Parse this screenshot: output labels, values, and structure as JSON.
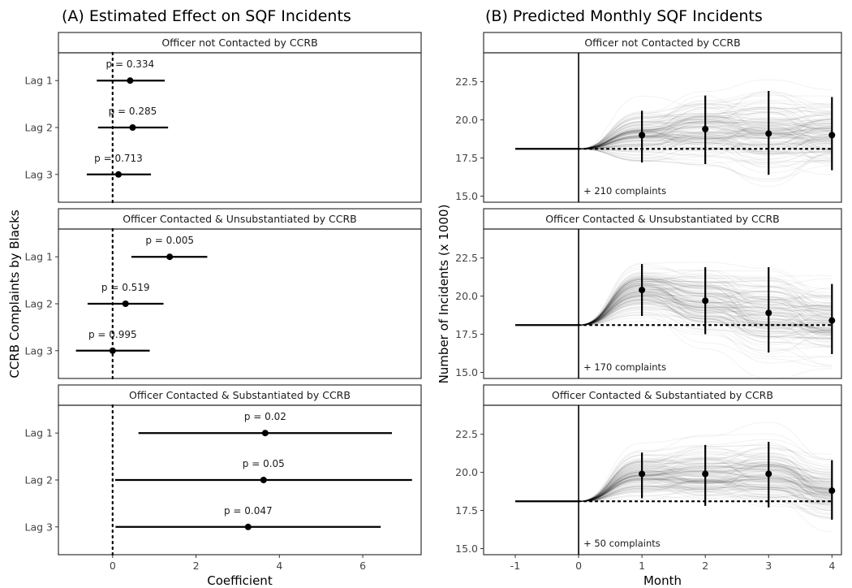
{
  "chart_data": [
    {
      "type": "scatter",
      "panel_title": "(A) Estimated Effect on SQF Incidents",
      "xlabel": "Coefficient",
      "ylabel": "CCRB Complaints by Blacks",
      "xlim": [
        -1.3,
        7.4
      ],
      "xticks": [
        0,
        2,
        4,
        6
      ],
      "reference_line_x": 0,
      "facets": [
        {
          "title": "Officer not Contacted by CCRB",
          "rows": [
            {
              "label": "Lag 1",
              "estimate": 0.42,
              "lower": -0.38,
              "upper": 1.25,
              "p_label": "p = 0.334"
            },
            {
              "label": "Lag 2",
              "estimate": 0.48,
              "lower": -0.35,
              "upper": 1.33,
              "p_label": "p = 0.285"
            },
            {
              "label": "Lag 3",
              "estimate": 0.14,
              "lower": -0.62,
              "upper": 0.92,
              "p_label": "p = 0.713"
            }
          ]
        },
        {
          "title": "Officer Contacted & Unsubstantiated by CCRB",
          "rows": [
            {
              "label": "Lag 1",
              "estimate": 1.37,
              "lower": 0.45,
              "upper": 2.27,
              "p_label": "p = 0.005"
            },
            {
              "label": "Lag 2",
              "estimate": 0.31,
              "lower": -0.6,
              "upper": 1.22,
              "p_label": "p = 0.519"
            },
            {
              "label": "Lag 3",
              "estimate": 0.0,
              "lower": -0.88,
              "upper": 0.89,
              "p_label": "p = 0.995"
            }
          ]
        },
        {
          "title": "Officer Contacted & Substantiated by CCRB",
          "rows": [
            {
              "label": "Lag 1",
              "estimate": 3.66,
              "lower": 0.62,
              "upper": 6.7,
              "p_label": "p = 0.02"
            },
            {
              "label": "Lag 2",
              "estimate": 3.62,
              "lower": 0.06,
              "upper": 7.18,
              "p_label": "p = 0.05"
            },
            {
              "label": "Lag 3",
              "estimate": 3.25,
              "lower": 0.07,
              "upper": 6.43,
              "p_label": "p = 0.047"
            }
          ]
        }
      ]
    },
    {
      "type": "line",
      "panel_title": "(B) Predicted Monthly SQF Incidents",
      "xlabel": "Month",
      "ylabel": "Number of Incidents (x 1000)",
      "xlim": [
        -1.5,
        4.15
      ],
      "ylim": [
        14.6,
        24.4
      ],
      "xticks": [
        -1,
        0,
        1,
        2,
        3,
        4
      ],
      "yticks": [
        "15.0",
        "17.5",
        "20.0",
        "22.5"
      ],
      "baseline": 18.1,
      "intervention_month": 0,
      "facets": [
        {
          "title": "Officer not Contacted by CCRB",
          "annotation": "+ 210 complaints",
          "points": [
            {
              "month": 1,
              "mean": 19.0,
              "lower": 17.2,
              "upper": 20.6
            },
            {
              "month": 2,
              "mean": 19.4,
              "lower": 17.1,
              "upper": 21.6
            },
            {
              "month": 3,
              "mean": 19.1,
              "lower": 16.4,
              "upper": 21.9
            },
            {
              "month": 4,
              "mean": 19.0,
              "lower": 16.7,
              "upper": 21.5
            }
          ]
        },
        {
          "title": "Officer Contacted & Unsubstantiated by CCRB",
          "annotation": "+ 170 complaints",
          "points": [
            {
              "month": 1,
              "mean": 20.4,
              "lower": 18.7,
              "upper": 22.1
            },
            {
              "month": 2,
              "mean": 19.7,
              "lower": 17.5,
              "upper": 21.9
            },
            {
              "month": 3,
              "mean": 18.9,
              "lower": 16.3,
              "upper": 21.9
            },
            {
              "month": 4,
              "mean": 18.4,
              "lower": 16.2,
              "upper": 20.8
            }
          ]
        },
        {
          "title": "Officer Contacted & Substantiated by CCRB",
          "annotation": "+ 50 complaints",
          "points": [
            {
              "month": 1,
              "mean": 19.9,
              "lower": 18.3,
              "upper": 21.3
            },
            {
              "month": 2,
              "mean": 19.9,
              "lower": 17.8,
              "upper": 21.8
            },
            {
              "month": 3,
              "mean": 19.9,
              "lower": 17.7,
              "upper": 22.0
            },
            {
              "month": 4,
              "mean": 18.8,
              "lower": 16.9,
              "upper": 20.8
            }
          ]
        }
      ]
    }
  ]
}
